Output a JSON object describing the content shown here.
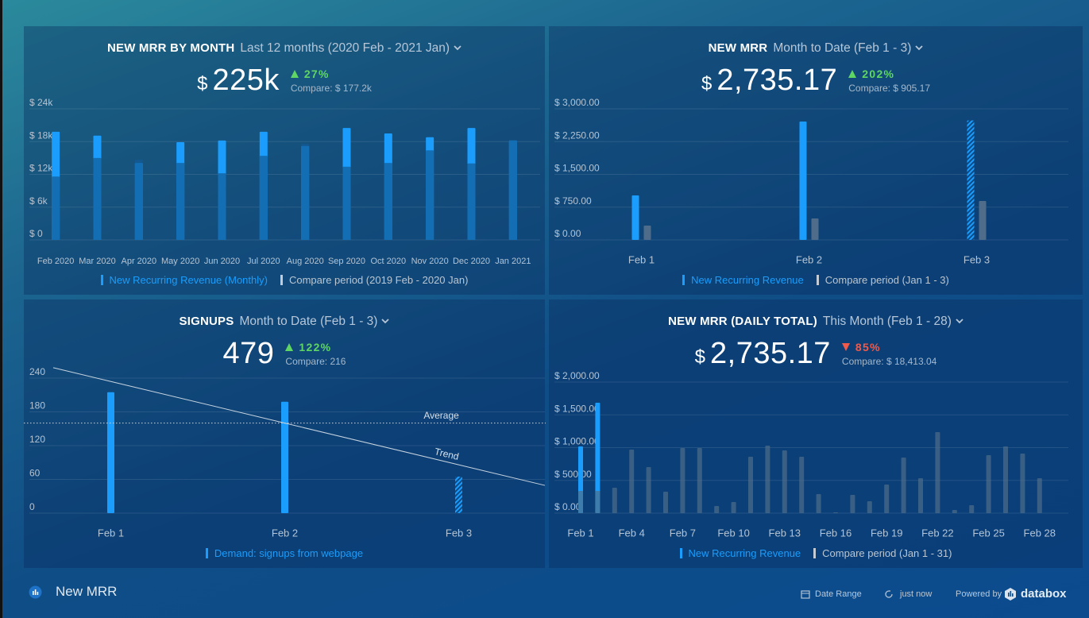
{
  "chart_data": [
    {
      "type": "bar",
      "title": "NEW MRR BY MONTH",
      "period": "Last 12 months (2020 Feb - 2021 Jan)",
      "currency": "$",
      "value_text": "225k",
      "change": "27%",
      "change_direction": "up",
      "compare_text": "Compare: $ 177.2k",
      "categories": [
        "Feb 2020",
        "Mar 2020",
        "Apr 2020",
        "May 2020",
        "Jun 2020",
        "Jul 2020",
        "Aug 2020",
        "Sep 2020",
        "Oct 2020",
        "Nov 2020",
        "Dec 2020",
        "Jan 2021"
      ],
      "series": [
        {
          "name": "New Recurring Revenue (Monthly)",
          "color": "#1a9dfc",
          "values": [
            19800,
            19100,
            14100,
            17900,
            18200,
            19800,
            17200,
            20500,
            19500,
            18800,
            20500,
            18200
          ]
        },
        {
          "name": "Compare period (2019 Feb - 2020 Jan)",
          "color": "#135a96",
          "values": [
            11600,
            15000,
            14700,
            14100,
            12200,
            15400,
            17600,
            13400,
            14100,
            16400,
            14000,
            18300
          ]
        }
      ],
      "bar_mode": "overlap",
      "ylim": [
        0,
        24000
      ],
      "yticks": [
        {
          "value": 0,
          "label": "$ 0"
        },
        {
          "value": 6000,
          "label": "$ 6k"
        },
        {
          "value": 12000,
          "label": "$ 12k"
        },
        {
          "value": 18000,
          "label": "$ 18k"
        },
        {
          "value": 24000,
          "label": "$ 24k"
        }
      ],
      "grid": true
    },
    {
      "type": "bar",
      "title": "NEW MRR",
      "period": "Month to Date (Feb 1 - 3)",
      "currency": "$",
      "value_text": "2,735.17",
      "change": "202%",
      "change_direction": "up",
      "compare_text": "Compare: $ 905.17",
      "categories": [
        "Feb 1",
        "Feb 2",
        "Feb 3"
      ],
      "series": [
        {
          "name": "New Recurring Revenue",
          "color": "#1a9dfc",
          "values": [
            1018,
            2709,
            2735
          ]
        },
        {
          "name": "Compare period (Jan 1 - 3)",
          "color": "#4f6d8a",
          "values": [
            327,
            491,
            891
          ]
        }
      ],
      "bar_mode": "group",
      "hatch_last": true,
      "ylim": [
        0,
        3000
      ],
      "yticks": [
        {
          "value": 0,
          "label": "$ 0.00"
        },
        {
          "value": 750,
          "label": "$ 750.00"
        },
        {
          "value": 1500,
          "label": "$ 1,500.00"
        },
        {
          "value": 2250,
          "label": "$ 2,250.00"
        },
        {
          "value": 3000,
          "label": "$ 3,000.00"
        }
      ],
      "grid": true
    },
    {
      "type": "bar",
      "title": "SIGNUPS",
      "period": "Month to Date (Feb 1 - 3)",
      "value_text": "479",
      "change": "122%",
      "change_direction": "up",
      "compare_text": "Compare: 216",
      "categories": [
        "Feb 1",
        "Feb 2",
        "Feb 3"
      ],
      "series": [
        {
          "name": "Demand: signups from webpage",
          "color": "#1a9dfc",
          "values": [
            215,
            198,
            65
          ]
        }
      ],
      "bar_mode": "overlap",
      "hatch_last": true,
      "average": {
        "label": "Average",
        "value": 160
      },
      "trend": {
        "label": "Trend",
        "values": [
          234,
          160,
          86
        ]
      },
      "ylim": [
        0,
        240
      ],
      "yticks": [
        0,
        60,
        120,
        180,
        240
      ],
      "grid": true
    },
    {
      "type": "bar",
      "title": "NEW MRR (DAILY TOTAL)",
      "period": "This Month (Feb 1 - 28)",
      "currency": "$",
      "value_text": "2,735.17",
      "change": "85%",
      "change_direction": "down",
      "compare_text": "Compare: $ 18,413.04",
      "categories": [
        "Feb 1",
        null,
        null,
        "Feb 4",
        null,
        null,
        "Feb 7",
        null,
        null,
        "Feb 10",
        null,
        null,
        "Feb 13",
        null,
        null,
        "Feb 16",
        null,
        null,
        "Feb 19",
        null,
        null,
        "Feb 22",
        null,
        null,
        "Feb 25",
        null,
        null,
        "Feb 28"
      ],
      "series": [
        {
          "name": "New Recurring Revenue",
          "color": "#1a9dfc",
          "values": [
            1018,
            1685,
            null,
            null,
            null,
            null,
            null,
            null,
            null,
            null,
            null,
            null,
            null,
            null,
            null,
            null,
            null,
            null,
            null,
            null,
            null,
            null,
            null,
            null,
            null,
            null,
            null,
            null
          ]
        },
        {
          "name": "Compare period (Jan 1 - 31)",
          "color": "#4f6d8a",
          "values": [
            340,
            340,
            388,
            970,
            703,
            327,
            994,
            994,
            109,
            170,
            861,
            1030,
            958,
            861,
            291,
            12,
            279,
            182,
            436,
            848,
            533,
            1236,
            48,
            121,
            885,
            1018,
            909,
            533
          ]
        }
      ],
      "bar_mode": "overlap",
      "ylim": [
        0,
        2000
      ],
      "yticks": [
        {
          "value": 0,
          "label": "$ 0.00"
        },
        {
          "value": 500,
          "label": "$ 500.00"
        },
        {
          "value": 1000,
          "label": "$ 1,000.00"
        },
        {
          "value": 1500,
          "label": "$ 1,500.00"
        },
        {
          "value": 2000,
          "label": "$ 2,000.00"
        }
      ],
      "grid": true
    }
  ],
  "footer": {
    "dashboard_name": "New MRR",
    "date_range": "Date Range",
    "updated": "just now",
    "powered_by": "Powered by",
    "brand": "databox"
  }
}
